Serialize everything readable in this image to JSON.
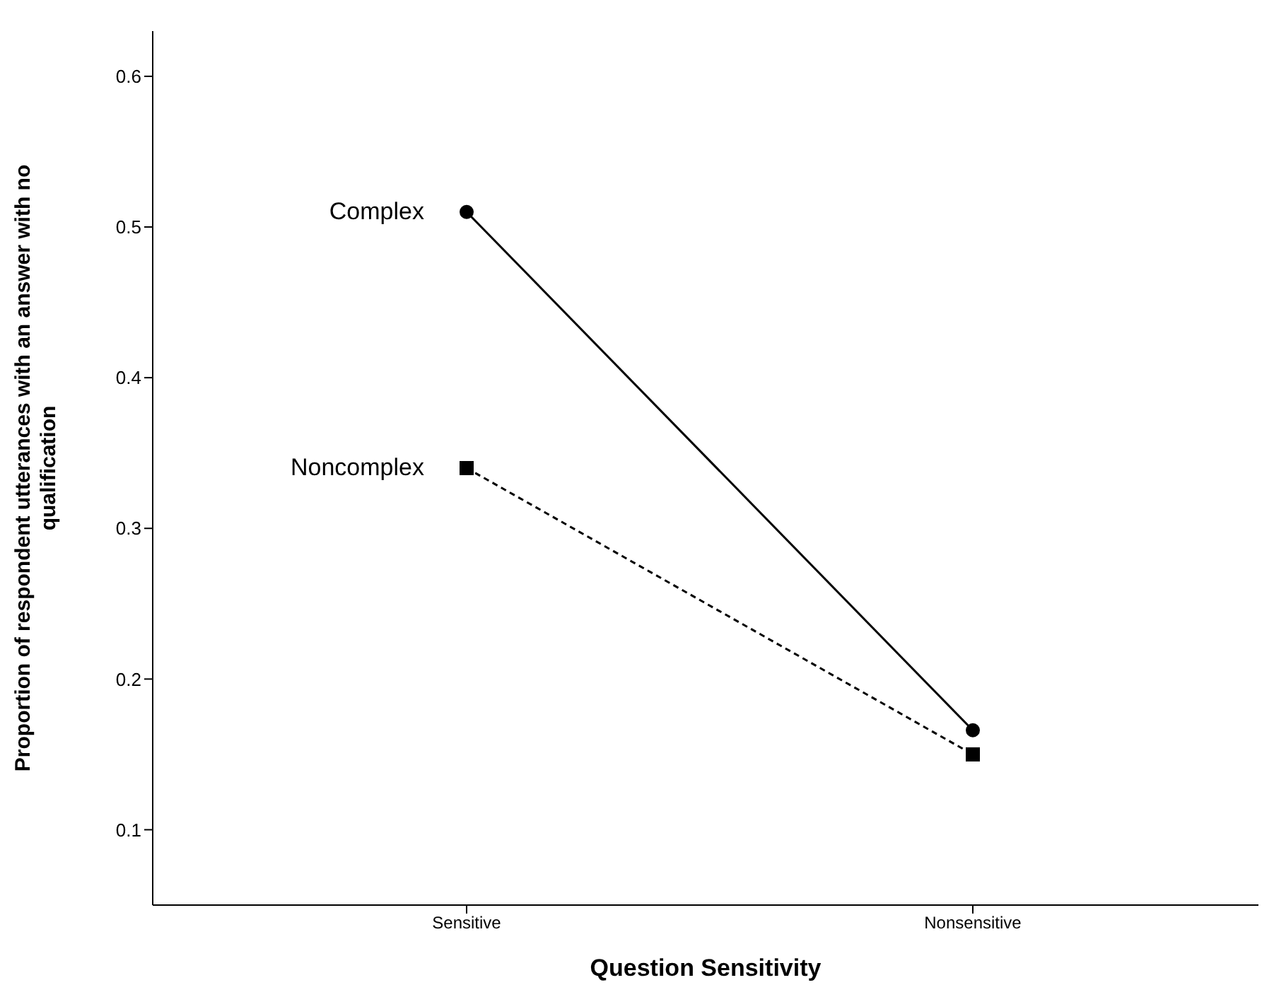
{
  "chart_data": {
    "type": "line",
    "xlabel": "Question Sensitivity",
    "ylabel": "Proportion of respondent utterances with an answer with no qualification",
    "categories": [
      "Sensitive",
      "Nonsensitive"
    ],
    "series": [
      {
        "name": "Complex",
        "color": "#000000",
        "values": [
          0.51,
          0.166
        ],
        "marker": "circle",
        "line_style": "solid"
      },
      {
        "name": "Noncomplex",
        "color": "#000000",
        "values": [
          0.34,
          0.15
        ],
        "marker": "square",
        "line_style": "dashed"
      }
    ],
    "ylim": [
      0.05,
      0.63
    ],
    "yticks": [
      0.1,
      0.2,
      0.3,
      0.4,
      0.5,
      0.6
    ],
    "grid": false,
    "legend": false
  }
}
